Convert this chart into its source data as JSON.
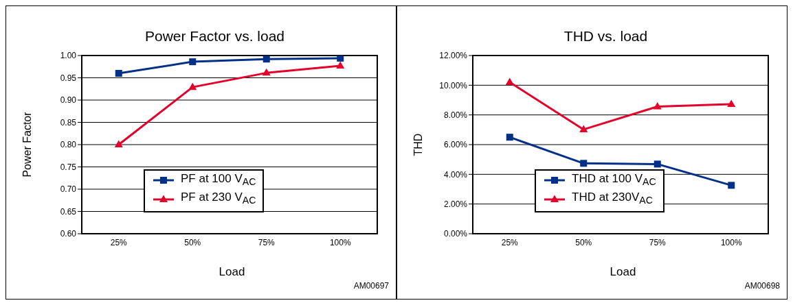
{
  "chart_data": [
    {
      "type": "line",
      "title": "Power Factor vs. load",
      "xlabel": "Load",
      "ylabel": "Power Factor",
      "categories": [
        "25%",
        "50%",
        "75%",
        "100%"
      ],
      "series": [
        {
          "name": "PF at 100 V$_{AC}$",
          "color": "#003087",
          "marker": "square",
          "values": [
            0.96,
            0.986,
            0.992,
            0.994
          ]
        },
        {
          "name": "PF at 230 V$_{AC}$",
          "color": "#e4002b",
          "marker": "triangle",
          "values": [
            0.8,
            0.929,
            0.961,
            0.977
          ]
        }
      ],
      "ylim": [
        0.6,
        1.0
      ],
      "yticks": [
        {
          "value": 0.6,
          "label": "0.60"
        },
        {
          "value": 0.65,
          "label": "0.65"
        },
        {
          "value": 0.7,
          "label": "0.70"
        },
        {
          "value": 0.75,
          "label": "0.75"
        },
        {
          "value": 0.8,
          "label": "0.80"
        },
        {
          "value": 0.85,
          "label": "0.85"
        },
        {
          "value": 0.9,
          "label": "0.90"
        },
        {
          "value": 0.95,
          "label": "0.95"
        },
        {
          "value": 1.0,
          "label": "1.00"
        }
      ],
      "grid": "y",
      "legend": "bottom",
      "annotations": [
        "AM00697"
      ]
    },
    {
      "type": "line",
      "title": "THD vs. load",
      "xlabel": "Load",
      "ylabel": "THD",
      "categories": [
        "25%",
        "50%",
        "75%",
        "100%"
      ],
      "series": [
        {
          "name": "THD at 100 V$_{AC}$",
          "color": "#003087",
          "marker": "square",
          "values": [
            6.5,
            4.74,
            4.69,
            3.26
          ]
        },
        {
          "name": "THD at 230V$_{AC}$",
          "color": "#e4002b",
          "marker": "triangle",
          "values": [
            10.2,
            7.02,
            8.56,
            8.72
          ]
        }
      ],
      "ylim": [
        0,
        12
      ],
      "yticks": [
        {
          "value": 0,
          "label": "0.00%"
        },
        {
          "value": 2,
          "label": "2.00%"
        },
        {
          "value": 4,
          "label": "4.00%"
        },
        {
          "value": 6,
          "label": "6.00%"
        },
        {
          "value": 8,
          "label": "8.00%"
        },
        {
          "value": 10,
          "label": "10.00%"
        },
        {
          "value": 12,
          "label": "12.00%"
        }
      ],
      "grid": "y",
      "legend": "bottom",
      "annotations": [
        "AM00698"
      ]
    }
  ]
}
